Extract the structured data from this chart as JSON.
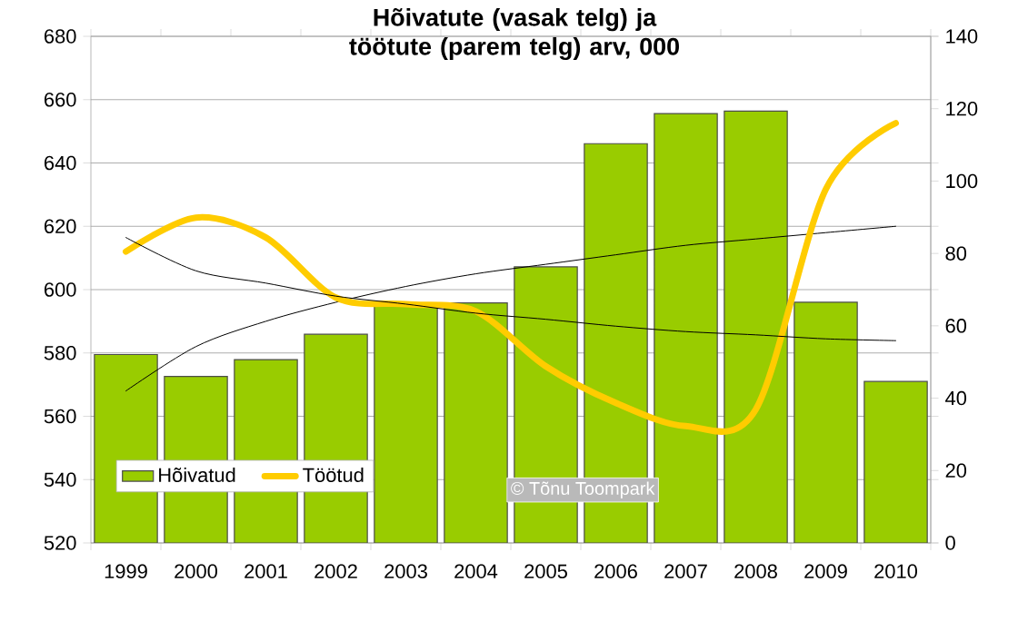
{
  "chart_data": {
    "type": "bar",
    "title": "Hõivatute (vasak telg) ja töötute (parem telg) arv, 000",
    "categories": [
      "1999",
      "2000",
      "2001",
      "2002",
      "2003",
      "2004",
      "2005",
      "2006",
      "2007",
      "2008",
      "2009",
      "2010"
    ],
    "series": [
      {
        "name": "Hõivatud",
        "axis": "y",
        "color": "#99cc00",
        "values": [
          579.5,
          572.6,
          577.9,
          585.9,
          594.7,
          595.8,
          607.2,
          646.1,
          655.6,
          656.4,
          596,
          571
        ]
      },
      {
        "name": "Töötud",
        "type": "line",
        "axis": "y2",
        "color": "#ffcc00",
        "values": [
          80.5,
          89.9,
          84.4,
          67.8,
          66,
          64,
          48.8,
          38.7,
          32.3,
          36.9,
          97.7,
          116
        ]
      },
      {
        "type": "line",
        "axis": "y",
        "color": "#000000",
        "values": [
          568,
          582,
          590,
          596,
          601,
          605,
          608,
          611,
          614,
          616,
          618,
          620
        ]
      },
      {
        "type": "line",
        "axis": "y2",
        "color": "#000000",
        "values": [
          84.4,
          75.2,
          71.8,
          68.2,
          66,
          63.5,
          61.8,
          59.9,
          58.4,
          57.5,
          56.4,
          55.9
        ]
      }
    ],
    "ylim": [
      520,
      680
    ],
    "yticks": [
      520,
      540,
      560,
      580,
      600,
      620,
      640,
      660,
      680
    ],
    "y2lim": [
      0,
      140
    ],
    "y2ticks": [
      0,
      20,
      40,
      60,
      80,
      100,
      120,
      140
    ],
    "grid": "y",
    "legend": "bottom left",
    "annotations": [
      "© Tõnu Toompark"
    ]
  }
}
